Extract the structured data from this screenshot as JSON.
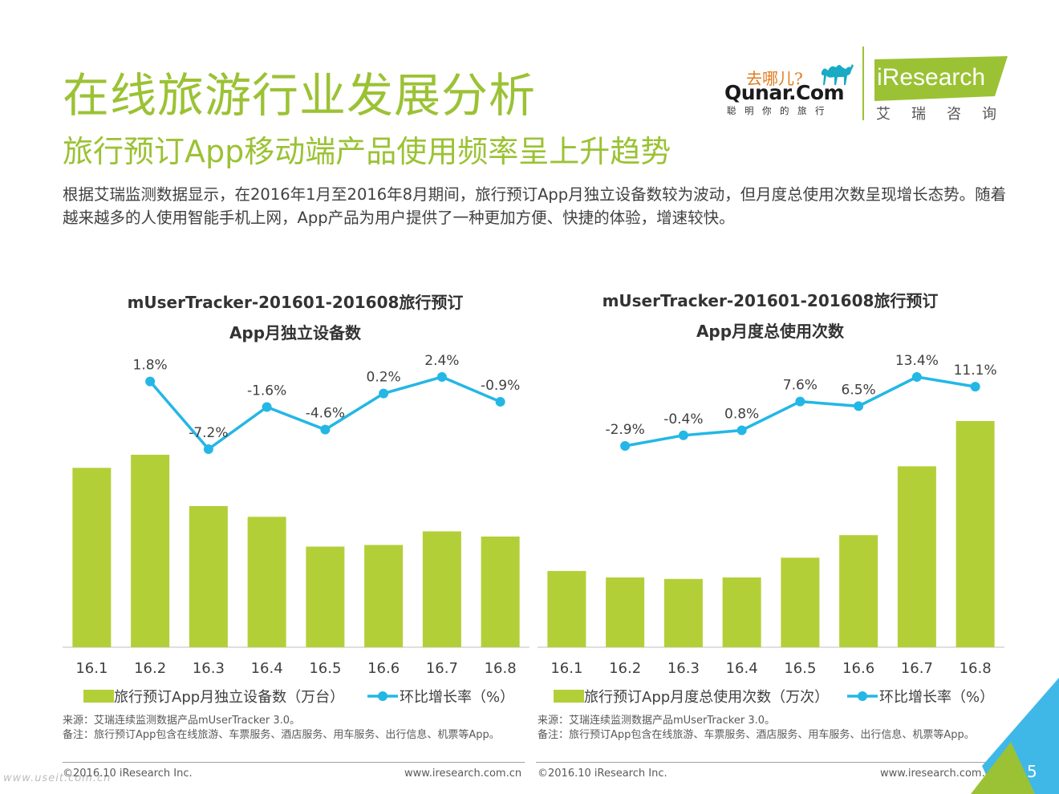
{
  "header": {
    "title": "在线旅游行业发展分析",
    "subtitle": "旅行预订App移动端产品使用频率呈上升趋势",
    "description": "根据艾瑞监测数据显示，在2016年1月至2016年8月期间，旅行预订App月独立设备数较为波动，但月度总使用次数呈现增长态势。随着越来越多的人使用智能手机上网，App产品为用户提供了一种更加方便、快捷的体验，增速较快。"
  },
  "logos": {
    "qunar_slogan": "去哪儿?",
    "qunar_name": "Qunar.Com",
    "qunar_tagline": "聪明你的旅行",
    "iresearch_name": "iResearch",
    "iresearch_cn": "艾瑞咨询"
  },
  "colors": {
    "brand_green": "#9bc234",
    "bar_green": "#b3cf38",
    "line_blue": "#23b7e5",
    "corner_blue": "#3fb8e8"
  },
  "chart_data": [
    {
      "type": "bar",
      "title_line1": "mUserTracker-201601-201608旅行预订",
      "title_line2": "App月独立设备数",
      "categories": [
        "16.1",
        "16.2",
        "16.3",
        "16.4",
        "16.5",
        "16.6",
        "16.7",
        "16.8"
      ],
      "series": [
        {
          "name": "旅行预订App月独立设备数（万台）",
          "type": "bar",
          "values": [
            100,
            107.3,
            78.7,
            72.7,
            56.1,
            57.0,
            64.6,
            61.7
          ]
        },
        {
          "name": "环比增长率（%）",
          "type": "line",
          "values": [
            null,
            1.8,
            -7.2,
            -1.6,
            -4.6,
            0.2,
            2.4,
            -0.9
          ],
          "labels": [
            "",
            "1.8%",
            "-7.2%",
            "-1.6%",
            "-4.6%",
            "0.2%",
            "2.4%",
            "-0.9%"
          ]
        }
      ],
      "legend_bar": "旅行预订App月独立设备数（万台）",
      "legend_line": "环比增长率（%）",
      "note_source": "来源：艾瑞连续监测数据产品mUserTracker 3.0。",
      "note_remark": "备注：旅行预订App包含在线旅游、车票服务、酒店服务、用车服务、出行信息、机票等App。"
    },
    {
      "type": "bar",
      "title_line1": "mUserTracker-201601-201608旅行预订",
      "title_line2": "App月度总使用次数",
      "categories": [
        "16.1",
        "16.2",
        "16.3",
        "16.4",
        "16.5",
        "16.6",
        "16.7",
        "16.8"
      ],
      "series": [
        {
          "name": "旅行预订App月度总使用次数（万次）",
          "type": "bar",
          "values": [
            100,
            91.5,
            89.6,
            91.5,
            117.4,
            147.0,
            237.3,
            296.6
          ]
        },
        {
          "name": "环比增长率（%）",
          "type": "line",
          "values": [
            null,
            -2.9,
            -0.4,
            0.8,
            7.6,
            6.5,
            13.4,
            11.1
          ],
          "labels": [
            "",
            "-2.9%",
            "-0.4%",
            "0.8%",
            "7.6%",
            "6.5%",
            "13.4%",
            "11.1%"
          ]
        }
      ],
      "legend_bar": "旅行预订App月度总使用次数（万次）",
      "legend_line": "环比增长率（%）",
      "note_source": "来源：艾瑞连续监测数据产品mUserTracker 3.0。",
      "note_remark": "备注：旅行预订App包含在线旅游、车票服务、酒店服务、用车服务、出行信息、机票等App。"
    }
  ],
  "footer": {
    "copyright": "©2016.10 iResearch Inc.",
    "website": "www.iresearch.com.cn",
    "watermark": "www.useit.com.cn",
    "page": "5"
  }
}
